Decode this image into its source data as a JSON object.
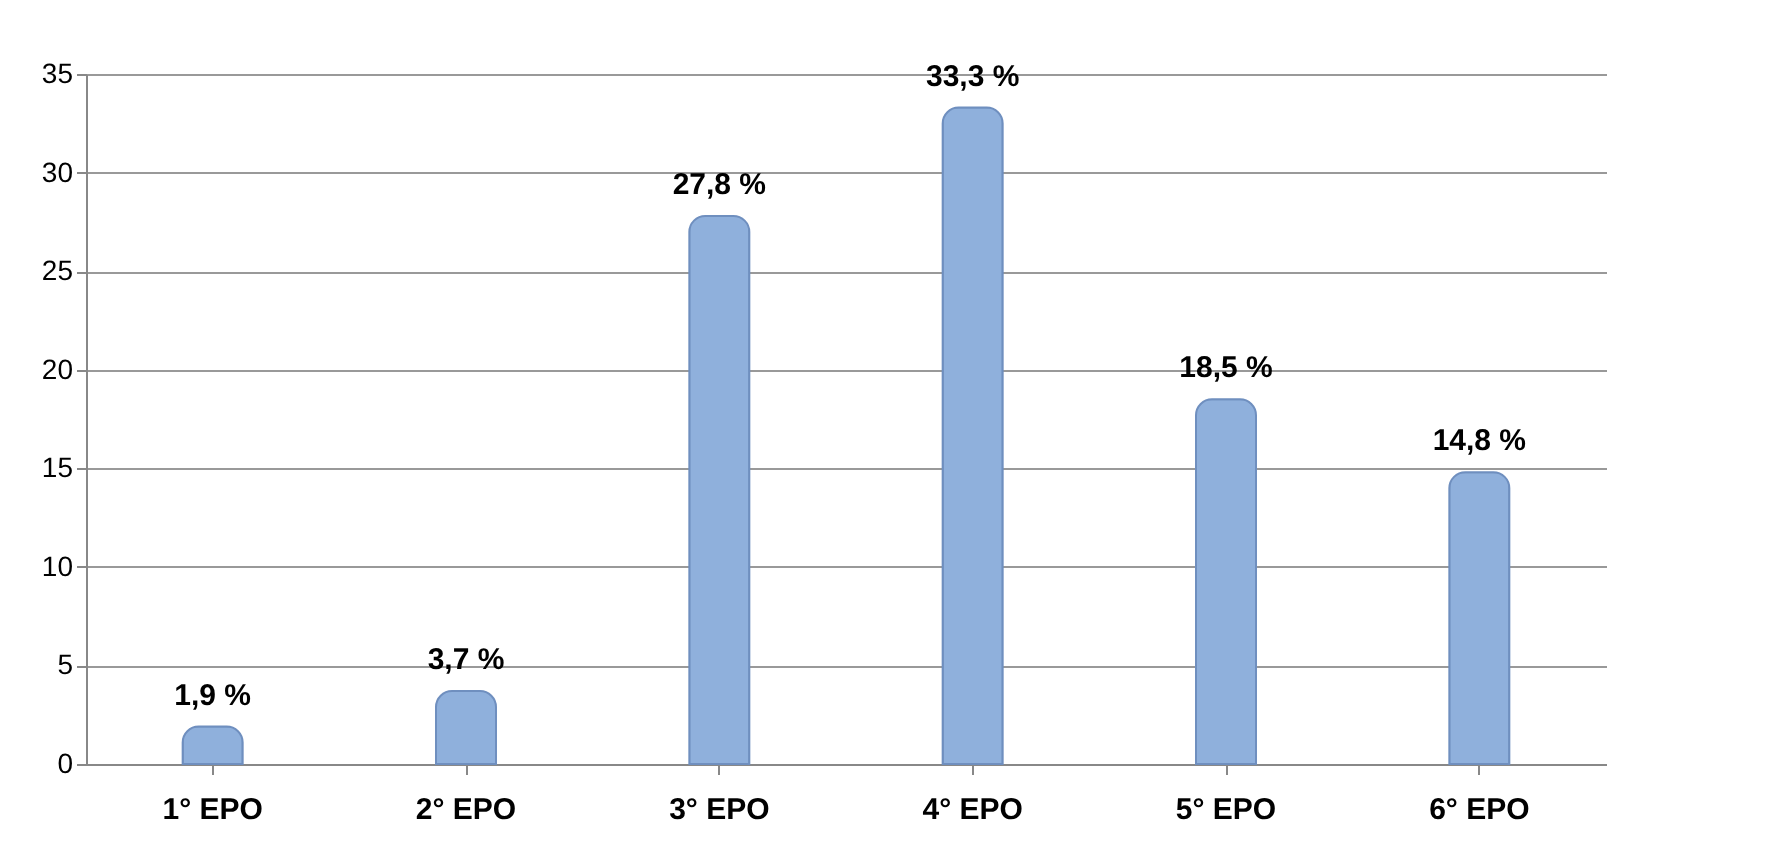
{
  "chart_data": {
    "type": "bar",
    "categories": [
      "1° EPO",
      "2° EPO",
      "3° EPO",
      "4° EPO",
      "5° EPO",
      "6° EPO"
    ],
    "values": [
      1.9,
      3.7,
      27.8,
      33.3,
      18.5,
      14.8
    ],
    "value_labels": [
      "1,9 %",
      "3,7 %",
      "27,8 %",
      "33,3  %",
      "18,5 %",
      "14,8 %"
    ],
    "color": "#8fb0dc",
    "ylim": [
      0,
      35
    ],
    "yticks": [
      0,
      5,
      10,
      15,
      20,
      25,
      30,
      35
    ],
    "grid": "y"
  }
}
